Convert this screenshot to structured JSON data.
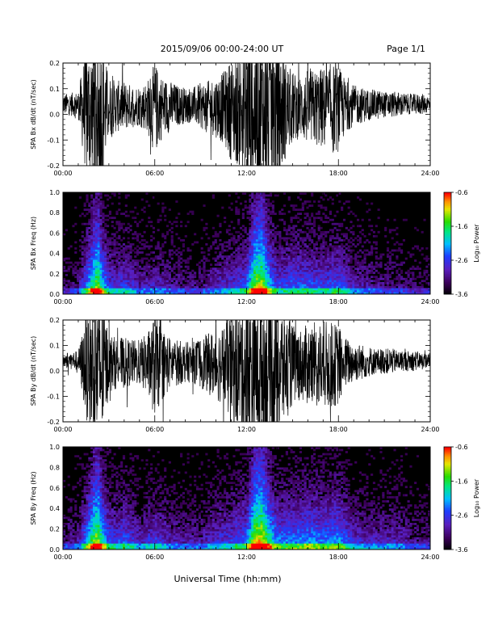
{
  "header": {
    "title": "2015/09/06  00:00-24:00 UT",
    "page": "Page 1/1"
  },
  "chart_data": [
    {
      "type": "line",
      "ylabel": "SPA Bx dB/dt (nT/sec)",
      "xlim": [
        0,
        24
      ],
      "ylim": [
        -0.2,
        0.2
      ],
      "xticks": [
        "00:00",
        "06:00",
        "12:00",
        "18:00",
        "24:00"
      ],
      "yticks": [
        "-0.2",
        "-0.1",
        "0.0",
        "0.1",
        "0.2"
      ],
      "series": [
        {
          "color": "#000000",
          "x": [
            0,
            1,
            1.5,
            2,
            2.5,
            3,
            3.5,
            4,
            4.5,
            5,
            5.5,
            6,
            6.5,
            7,
            7.5,
            8,
            8.5,
            9,
            9.5,
            10,
            10.5,
            11,
            11.5,
            12,
            12.5,
            13,
            13.5,
            14,
            14.5,
            15,
            15.5,
            16,
            16.5,
            17,
            17.5,
            18,
            18.5,
            19,
            19.5,
            20,
            20.5,
            21,
            21.5,
            22,
            22.5,
            23,
            23.5,
            24
          ],
          "amplitude": [
            0.04,
            0.05,
            0.25,
            0.3,
            0.3,
            0.12,
            0.1,
            0.1,
            0.08,
            0.08,
            0.1,
            0.18,
            0.12,
            0.1,
            0.08,
            0.07,
            0.07,
            0.09,
            0.1,
            0.12,
            0.14,
            0.2,
            0.22,
            0.3,
            0.3,
            0.3,
            0.3,
            0.3,
            0.2,
            0.14,
            0.12,
            0.15,
            0.15,
            0.16,
            0.18,
            0.17,
            0.1,
            0.08,
            0.07,
            0.06,
            0.06,
            0.05,
            0.05,
            0.05,
            0.04,
            0.04,
            0.04,
            0.03
          ]
        }
      ]
    },
    {
      "type": "heatmap",
      "ylabel": "SPA Bx Freq (Hz)",
      "xlim": [
        0,
        24
      ],
      "ylim": [
        0,
        1.0
      ],
      "xticks": [
        "00:00",
        "06:00",
        "12:00",
        "18:00",
        "24:00"
      ],
      "yticks": [
        "0.0",
        "0.2",
        "0.4",
        "0.6",
        "0.8",
        "1.0"
      ],
      "colorbar": {
        "label": "Log₁₀ Power",
        "range": [
          -3.6,
          -0.6
        ],
        "ticks": [
          "-0.6",
          "-1.6",
          "-2.6",
          "-3.6"
        ]
      },
      "intensity_profile": {
        "x": [
          0,
          1,
          2,
          2.3,
          2.6,
          3,
          3.5,
          4,
          4.5,
          5,
          6,
          7,
          8,
          9,
          10,
          11,
          12,
          12.5,
          13,
          13.5,
          14,
          15,
          16,
          17,
          18,
          19,
          20,
          21,
          22,
          23,
          24
        ],
        "level": [
          0.15,
          0.2,
          0.75,
          0.85,
          0.6,
          0.4,
          0.35,
          0.4,
          0.35,
          0.25,
          0.3,
          0.25,
          0.2,
          0.2,
          0.3,
          0.35,
          0.45,
          0.85,
          0.9,
          0.6,
          0.4,
          0.45,
          0.45,
          0.4,
          0.45,
          0.3,
          0.25,
          0.2,
          0.2,
          0.15,
          0.15
        ]
      }
    },
    {
      "type": "line",
      "ylabel": "SPA By dB/dt (nT/sec)",
      "xlim": [
        0,
        24
      ],
      "ylim": [
        -0.2,
        0.2
      ],
      "xticks": [
        "00:00",
        "06:00",
        "12:00",
        "18:00",
        "24:00"
      ],
      "yticks": [
        "-0.2",
        "-0.1",
        "0.0",
        "0.1",
        "0.2"
      ],
      "series": [
        {
          "color": "#000000",
          "x": [
            0,
            1,
            1.5,
            2,
            2.5,
            3,
            3.5,
            4,
            4.5,
            5,
            5.5,
            6,
            6.5,
            7,
            7.5,
            8,
            8.5,
            9,
            9.5,
            10,
            10.5,
            11,
            11.5,
            12,
            12.5,
            13,
            13.5,
            14,
            14.5,
            15,
            15.5,
            16,
            16.5,
            17,
            17.5,
            18,
            18.5,
            19,
            19.5,
            20,
            20.5,
            21,
            21.5,
            22,
            22.5,
            23,
            23.5,
            24
          ],
          "amplitude": [
            0.03,
            0.04,
            0.2,
            0.3,
            0.3,
            0.12,
            0.1,
            0.1,
            0.09,
            0.09,
            0.12,
            0.2,
            0.14,
            0.1,
            0.09,
            0.08,
            0.08,
            0.1,
            0.12,
            0.14,
            0.16,
            0.22,
            0.24,
            0.3,
            0.3,
            0.3,
            0.3,
            0.3,
            0.22,
            0.16,
            0.14,
            0.16,
            0.17,
            0.18,
            0.17,
            0.16,
            0.1,
            0.08,
            0.07,
            0.06,
            0.05,
            0.05,
            0.05,
            0.04,
            0.04,
            0.04,
            0.03,
            0.03
          ]
        }
      ]
    },
    {
      "type": "heatmap",
      "ylabel": "SPA By Freq (Hz)",
      "xlim": [
        0,
        24
      ],
      "ylim": [
        0,
        1.0
      ],
      "xticks": [
        "00:00",
        "06:00",
        "12:00",
        "18:00",
        "24:00"
      ],
      "yticks": [
        "0.0",
        "0.2",
        "0.4",
        "0.6",
        "0.8",
        "1.0"
      ],
      "colorbar": {
        "label": "Log₁₀ Power",
        "range": [
          -3.6,
          -0.6
        ],
        "ticks": [
          "-0.6",
          "-1.6",
          "-2.6",
          "-3.6"
        ]
      },
      "intensity_profile": {
        "x": [
          0,
          1,
          2,
          2.3,
          2.6,
          3,
          3.5,
          4,
          4.5,
          5,
          6,
          7,
          8,
          9,
          10,
          11,
          12,
          12.5,
          13,
          13.5,
          14,
          15,
          16,
          17,
          18,
          19,
          20,
          21,
          22,
          23,
          24
        ],
        "level": [
          0.2,
          0.25,
          0.8,
          0.9,
          0.65,
          0.45,
          0.4,
          0.45,
          0.4,
          0.3,
          0.4,
          0.3,
          0.25,
          0.25,
          0.35,
          0.4,
          0.5,
          0.9,
          0.95,
          0.7,
          0.5,
          0.5,
          0.55,
          0.5,
          0.55,
          0.35,
          0.3,
          0.3,
          0.3,
          0.2,
          0.2
        ]
      }
    }
  ],
  "xlabel": "Universal Time (hh:mm)"
}
